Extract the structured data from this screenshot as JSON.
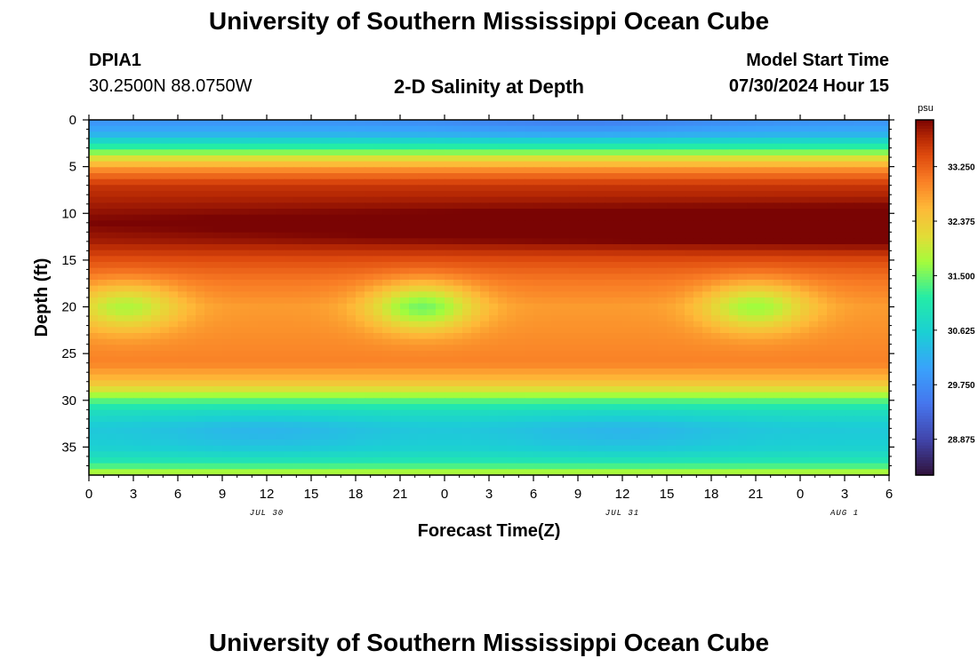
{
  "header": {
    "title": "University of Southern Mississippi Ocean Cube",
    "station": "DPIA1",
    "coords": "30.2500N  88.0750W",
    "subtitle": "2-D Salinity at Depth",
    "model_label": "Model Start Time",
    "model_time": "07/30/2024 Hour 15"
  },
  "footer": {
    "title": "University of Southern Mississippi Ocean Cube"
  },
  "chart_data": {
    "type": "heatmap",
    "title": "2-D Salinity at Depth",
    "xlabel": "Forecast Time(Z)",
    "ylabel": "Depth (ft)",
    "x_hours_range": [
      0,
      54
    ],
    "x_ticks": [
      {
        "hour": 0,
        "label": "0"
      },
      {
        "hour": 3,
        "label": "3"
      },
      {
        "hour": 6,
        "label": "6"
      },
      {
        "hour": 9,
        "label": "9"
      },
      {
        "hour": 12,
        "label": "12"
      },
      {
        "hour": 15,
        "label": "15"
      },
      {
        "hour": 18,
        "label": "18"
      },
      {
        "hour": 21,
        "label": "21"
      },
      {
        "hour": 24,
        "label": "0"
      },
      {
        "hour": 27,
        "label": "3"
      },
      {
        "hour": 30,
        "label": "6"
      },
      {
        "hour": 33,
        "label": "9"
      },
      {
        "hour": 36,
        "label": "12"
      },
      {
        "hour": 39,
        "label": "15"
      },
      {
        "hour": 42,
        "label": "18"
      },
      {
        "hour": 45,
        "label": "21"
      },
      {
        "hour": 48,
        "label": "0"
      },
      {
        "hour": 51,
        "label": "3"
      },
      {
        "hour": 54,
        "label": "6"
      }
    ],
    "date_labels": [
      {
        "hour": 12,
        "label": "JUL 30"
      },
      {
        "hour": 36,
        "label": "JUL 31"
      },
      {
        "hour": 51,
        "label": "AUG 1"
      }
    ],
    "ylim": [
      0,
      38
    ],
    "y_ticks": [
      0,
      5,
      10,
      15,
      20,
      25,
      30,
      35
    ],
    "colorbar": {
      "unit": "psu",
      "range": [
        28.3,
        34.0
      ],
      "ticks": [
        "33.250",
        "32.375",
        "31.500",
        "30.625",
        "29.750",
        "28.875"
      ]
    },
    "depth_profile_psu": [
      [
        0,
        29.8
      ],
      [
        1.5,
        30.2
      ],
      [
        2.5,
        30.9
      ],
      [
        3.5,
        31.6
      ],
      [
        4.5,
        32.4
      ],
      [
        5.5,
        33.0
      ],
      [
        7,
        33.6
      ],
      [
        9,
        33.8
      ],
      [
        11,
        34.0
      ],
      [
        13,
        33.8
      ],
      [
        15,
        33.4
      ],
      [
        17,
        33.1
      ],
      [
        20,
        32.8
      ],
      [
        23,
        32.9
      ],
      [
        26,
        33.0
      ],
      [
        28,
        32.5
      ],
      [
        29,
        32.0
      ],
      [
        30,
        31.4
      ],
      [
        31,
        30.9
      ],
      [
        33,
        30.5
      ],
      [
        35,
        30.6
      ],
      [
        36.5,
        31.0
      ],
      [
        37.5,
        31.6
      ],
      [
        38,
        32.0
      ]
    ],
    "fresh_pockets": [
      {
        "hour": 2.5,
        "depth_ft": 20,
        "min_psu": 31.8
      },
      {
        "hour": 22.5,
        "depth_ft": 20,
        "min_psu": 31.5
      },
      {
        "hour": 45,
        "depth_ft": 20,
        "min_psu": 31.7
      }
    ]
  }
}
